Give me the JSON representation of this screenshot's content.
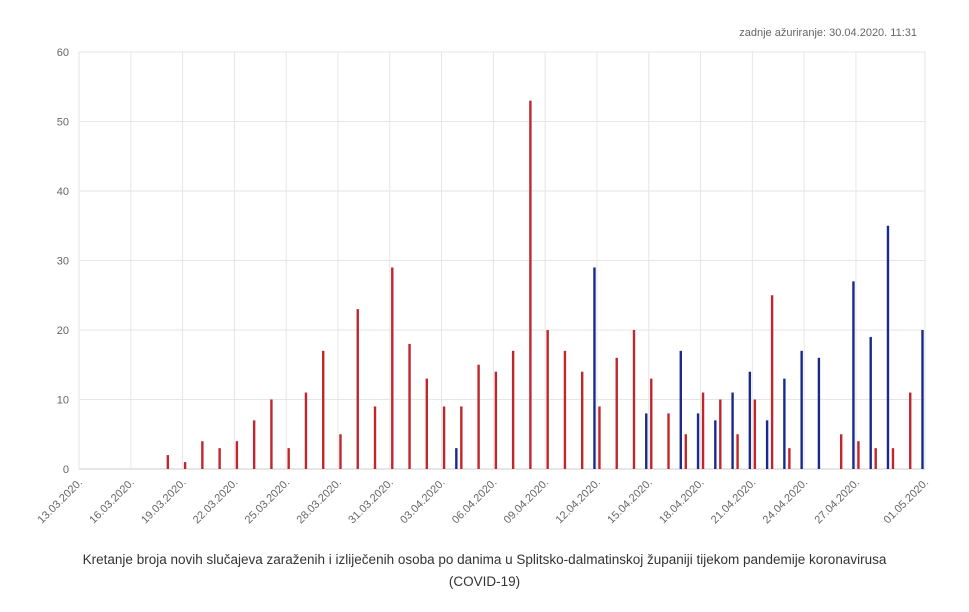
{
  "updated": "zadnje ažuriranje: 30.04.2020. 11:31",
  "caption": {
    "line1": "Kretanje broja novih slučajeva zaraženih i izliječenih osoba po danima u Splitsko-dalmatinskoj županiji tijekom pandemije koronavirusa",
    "line2": "(COVID-19)"
  },
  "colors": {
    "infected": "#c0272d",
    "recovered": "#1a2a8c",
    "grid": "#e6e6e6",
    "axis": "#cccccc"
  },
  "chart_data": {
    "type": "bar",
    "start_date": "13.03.2020.",
    "x": [
      "13.03.2020.",
      "14.03.2020.",
      "15.03.2020.",
      "16.03.2020.",
      "17.03.2020.",
      "18.03.2020.",
      "19.03.2020.",
      "20.03.2020.",
      "21.03.2020.",
      "22.03.2020.",
      "23.03.2020.",
      "24.03.2020.",
      "25.03.2020.",
      "26.03.2020.",
      "27.03.2020.",
      "28.03.2020.",
      "29.03.2020.",
      "30.03.2020.",
      "31.03.2020.",
      "01.04.2020.",
      "02.04.2020.",
      "03.04.2020.",
      "04.04.2020.",
      "05.04.2020.",
      "06.04.2020.",
      "07.04.2020.",
      "08.04.2020.",
      "09.04.2020.",
      "10.04.2020.",
      "11.04.2020.",
      "12.04.2020.",
      "13.04.2020.",
      "14.04.2020.",
      "15.04.2020.",
      "16.04.2020.",
      "17.04.2020.",
      "18.04.2020.",
      "19.04.2020.",
      "20.04.2020.",
      "21.04.2020.",
      "22.04.2020.",
      "23.04.2020.",
      "24.04.2020.",
      "25.04.2020.",
      "26.04.2020.",
      "27.04.2020.",
      "28.04.2020.",
      "29.04.2020.",
      "30.04.2020.",
      "01.05.2020."
    ],
    "x_tick_labels": [
      "13.03.2020.",
      "16.03.2020.",
      "19.03.2020.",
      "22.03.2020.",
      "25.03.2020.",
      "28.03.2020.",
      "31.03.2020.",
      "03.04.2020.",
      "06.04.2020.",
      "09.04.2020.",
      "12.04.2020.",
      "15.04.2020.",
      "18.04.2020.",
      "21.04.2020.",
      "24.04.2020.",
      "27.04.2020.",
      "01.05.2020."
    ],
    "series": [
      {
        "values": [
          0,
          0,
          0,
          0,
          0,
          2,
          1,
          4,
          3,
          4,
          7,
          10,
          3,
          11,
          17,
          5,
          23,
          9,
          29,
          18,
          13,
          9,
          9,
          15,
          14,
          17,
          53,
          20,
          17,
          14,
          9,
          16,
          20,
          13,
          8,
          5,
          11,
          10,
          5,
          10,
          25,
          3,
          0,
          0,
          5,
          4,
          3,
          3,
          11,
          0
        ]
      },
      {
        "values": [
          0,
          0,
          0,
          0,
          0,
          0,
          0,
          0,
          0,
          0,
          0,
          0,
          0,
          0,
          0,
          0,
          0,
          0,
          0,
          0,
          0,
          0,
          3,
          0,
          0,
          0,
          0,
          0,
          0,
          0,
          29,
          0,
          0,
          8,
          0,
          17,
          8,
          7,
          11,
          14,
          7,
          13,
          17,
          16,
          0,
          27,
          19,
          35,
          0,
          20
        ]
      }
    ],
    "ylim": [
      0,
      60
    ],
    "yticks": [
      0,
      10,
      20,
      30,
      40,
      50,
      60
    ],
    "grid": true,
    "legend": "none"
  }
}
